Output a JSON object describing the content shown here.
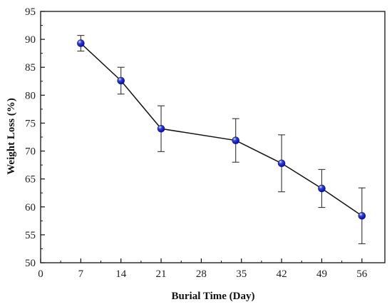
{
  "chart_data": {
    "type": "line",
    "xlabel": "Burial Time (Day)",
    "ylabel": "Weight Loss (%)",
    "xlim": [
      0,
      60
    ],
    "ylim": [
      50,
      95
    ],
    "x_ticks": [
      "0",
      "7",
      "14",
      "21",
      "28",
      "35",
      "42",
      "49",
      "56"
    ],
    "y_ticks": [
      "50",
      "55",
      "60",
      "65",
      "70",
      "75",
      "80",
      "85",
      "90",
      "95"
    ],
    "grid": false,
    "legend": "none",
    "series": [
      {
        "x": [
          7,
          14,
          21,
          34,
          42,
          49,
          56
        ],
        "y": [
          89.3,
          82.6,
          74.0,
          71.9,
          67.8,
          63.3,
          58.4
        ],
        "error": [
          1.4,
          2.4,
          4.1,
          3.9,
          5.1,
          3.4,
          5.0
        ],
        "marker_color": "#3340e6",
        "line_color": "#111111"
      }
    ]
  }
}
